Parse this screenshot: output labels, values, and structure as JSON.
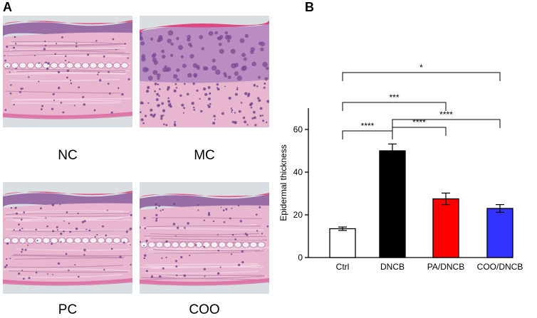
{
  "panel_a": {
    "letter": "A",
    "images": [
      {
        "label": "NC",
        "style": "thin"
      },
      {
        "label": "MC",
        "style": "thick"
      },
      {
        "label": "PC",
        "style": "thin"
      },
      {
        "label": "COO",
        "style": "thin"
      }
    ]
  },
  "panel_b": {
    "letter": "B"
  },
  "colors": {
    "tissue_pink": "#e8b7cf",
    "epidermis_purple": "#8d5a9c",
    "background": "#d9dee3"
  },
  "chart_data": {
    "type": "bar",
    "title": "",
    "xlabel": "",
    "ylabel": "Epidermal thickness",
    "ylim": [
      0,
      70
    ],
    "yticks": [
      0,
      20,
      40,
      60
    ],
    "categories": [
      "Ctrl",
      "DNCB",
      "PA/DNCB",
      "COO/DNCB"
    ],
    "values": [
      13.5,
      50,
      27.5,
      23
    ],
    "errors": [
      0.8,
      3.2,
      2.7,
      1.8
    ],
    "bar_colors": [
      "#ffffff",
      "#000000",
      "#ff0000",
      "#3333ff"
    ],
    "significance": [
      {
        "from": "Ctrl",
        "to": "DNCB",
        "label": "****"
      },
      {
        "from": "DNCB",
        "to": "PA/DNCB",
        "label": "****"
      },
      {
        "from": "DNCB",
        "to": "COO/DNCB",
        "label": "****"
      },
      {
        "from": "Ctrl",
        "to": "PA/DNCB",
        "label": "***"
      },
      {
        "from": "Ctrl",
        "to": "COO/DNCB",
        "label": "*"
      }
    ]
  }
}
